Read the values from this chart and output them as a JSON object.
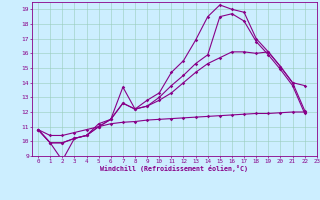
{
  "title": "",
  "xlabel": "Windchill (Refroidissement éolien,°C)",
  "background_color": "#cceeff",
  "grid_color": "#aaddcc",
  "line_color": "#880088",
  "xlim": [
    -0.5,
    23
  ],
  "ylim": [
    9,
    19.5
  ],
  "yticks": [
    9,
    10,
    11,
    12,
    13,
    14,
    15,
    16,
    17,
    18,
    19
  ],
  "xticks": [
    0,
    1,
    2,
    3,
    4,
    5,
    6,
    7,
    8,
    9,
    10,
    11,
    12,
    13,
    14,
    15,
    16,
    17,
    18,
    19,
    20,
    21,
    22,
    23
  ],
  "top_y": [
    10.8,
    9.9,
    8.7,
    10.2,
    10.4,
    11.2,
    11.5,
    13.7,
    12.2,
    12.8,
    13.3,
    14.7,
    15.5,
    16.9,
    18.5,
    19.3,
    19.0,
    18.8,
    17.0,
    16.1,
    15.1,
    14.0,
    12.1
  ],
  "mid_high_y": [
    10.8,
    9.9,
    9.9,
    10.2,
    10.4,
    11.0,
    11.5,
    12.6,
    12.2,
    12.4,
    13.0,
    13.8,
    14.5,
    15.3,
    15.9,
    18.5,
    18.7,
    18.2,
    16.8,
    15.9,
    14.9,
    13.8,
    11.9
  ],
  "mid_y": [
    10.8,
    9.9,
    9.9,
    10.2,
    10.4,
    11.0,
    11.5,
    12.6,
    12.2,
    12.4,
    12.8,
    13.3,
    14.0,
    14.7,
    15.3,
    15.7,
    16.1,
    16.1,
    16.0,
    16.1,
    15.1,
    14.0,
    13.8
  ],
  "flat_y": [
    10.8,
    10.4,
    10.4,
    10.6,
    10.8,
    11.0,
    11.2,
    11.3,
    11.35,
    11.45,
    11.5,
    11.55,
    11.6,
    11.65,
    11.7,
    11.75,
    11.8,
    11.85,
    11.9,
    11.9,
    11.95,
    12.0,
    12.0
  ]
}
